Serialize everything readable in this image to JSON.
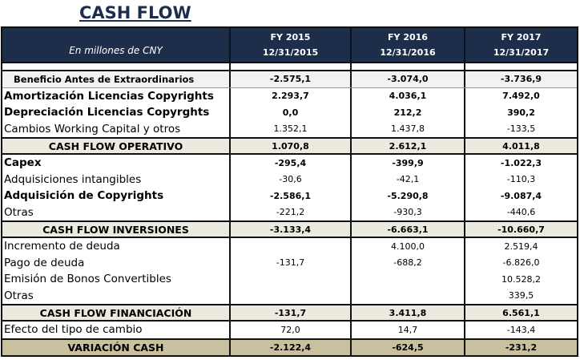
{
  "title": "CASH FLOW",
  "header": {
    "units": "En millones de CNY",
    "columns": [
      {
        "fy": "FY 2015",
        "date": "12/31/2015"
      },
      {
        "fy": "FY 2016",
        "date": "12/31/2016"
      },
      {
        "fy": "FY 2017",
        "date": "12/31/2017"
      }
    ]
  },
  "rows": [
    {
      "style": "sub",
      "label": "Beneficio Antes de Extraordinarios",
      "values": [
        "-2.575,1",
        "-3.074,0",
        "-3.736,9"
      ]
    },
    {
      "style": "bb",
      "label": "Amortización Licencias Copyrights",
      "values": [
        "2.293,7",
        "4.036,1",
        "7.492,0"
      ]
    },
    {
      "style": "bb",
      "label": "Depreciación Licencias Copyrghts",
      "values": [
        "0,0",
        "212,2",
        "390,2"
      ]
    },
    {
      "style": "n",
      "label": "Cambios Working Capital  y otros",
      "values": [
        "1.352,1",
        "1.437,8",
        "-133,5"
      ]
    },
    {
      "style": "tot",
      "label": "CASH FLOW OPERATIVO",
      "values": [
        "1.070,8",
        "2.612,1",
        "4.011,8"
      ]
    },
    {
      "style": "bb",
      "label": "Capex",
      "values": [
        "-295,4",
        "-399,9",
        "-1.022,3"
      ]
    },
    {
      "style": "n",
      "label": "Adquisiciones intangibles",
      "values": [
        "-30,6",
        "-42,1",
        "-110,3"
      ]
    },
    {
      "style": "bb",
      "label": "Adquisición de Copyrights",
      "values": [
        "-2.586,1",
        "-5.290,8",
        "-9.087,4"
      ]
    },
    {
      "style": "n",
      "label": "Otras",
      "values": [
        "-221,2",
        "-930,3",
        "-440,6"
      ]
    },
    {
      "style": "tot",
      "label": "CASH FLOW INVERSIONES",
      "values": [
        "-3.133,4",
        "-6.663,1",
        "-10.660,7"
      ]
    },
    {
      "style": "n",
      "label": "Incremento de deuda",
      "values": [
        "",
        "4.100,0",
        "2.519,4"
      ]
    },
    {
      "style": "n",
      "label": "Pago de deuda",
      "values": [
        "-131,7",
        "-688,2",
        "-6.826,0"
      ]
    },
    {
      "style": "n",
      "label": "Emisión de Bonos Convertibles",
      "values": [
        "",
        "",
        "10.528,2"
      ]
    },
    {
      "style": "n",
      "label": "Otras",
      "values": [
        "",
        "",
        "339,5"
      ]
    },
    {
      "style": "tot",
      "label": "CASH FLOW FINANCIACIÓN",
      "values": [
        "-131,7",
        "3.411,8",
        "6.561,1"
      ]
    },
    {
      "style": "n",
      "label": "Efecto del tipo de cambio",
      "values": [
        "72,0",
        "14,7",
        "-143,4"
      ]
    },
    {
      "style": "fin",
      "label": "VARIACIÓN CASH",
      "values": [
        "-2.122,4",
        "-624,5",
        "-231,2"
      ]
    }
  ]
}
